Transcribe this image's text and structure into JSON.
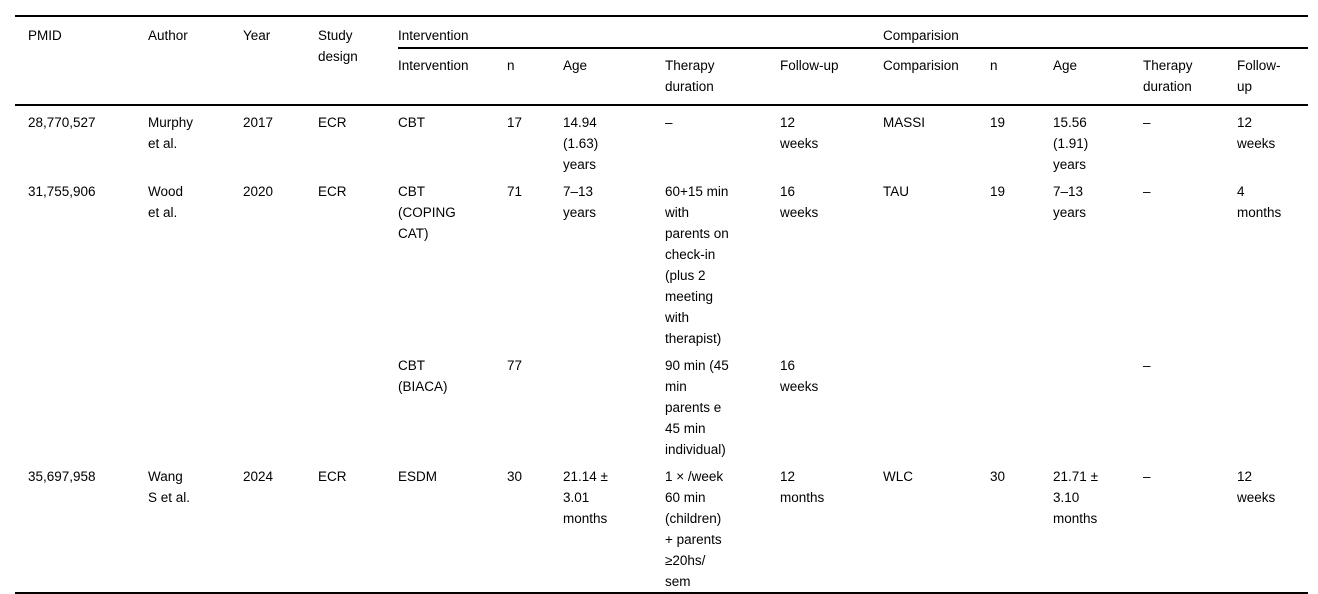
{
  "colors": {
    "text": "#000000",
    "rule": "#000000",
    "bg": "#ffffff"
  },
  "table": {
    "group_headers": {
      "intervention": "Intervention",
      "comparison": "Comparision"
    },
    "column_headers": {
      "pmid": "PMID",
      "author": "Author",
      "year": "Year",
      "study_design": "Study\ndesign",
      "i_intervention": "Intervention",
      "i_n": "n",
      "i_age": "Age",
      "i_therapy_duration": "Therapy\nduration",
      "i_follow_up": "Follow-up",
      "c_comparison": "Comparision",
      "c_n": "n",
      "c_age": "Age",
      "c_therapy_duration": "Therapy\nduration",
      "c_follow_up": "Follow-\nup"
    },
    "rows": [
      [
        "28,770,527",
        "Murphy\net al.",
        "2017",
        "ECR",
        "CBT",
        "17",
        "14.94\n(1.63)\nyears",
        "–",
        "12\nweeks",
        "MASSI",
        "19",
        "15.56\n(1.91)\nyears",
        "–",
        "12\nweeks"
      ],
      [
        "31,755,906",
        "Wood\net al.",
        "2020",
        "ECR",
        "CBT\n(COPING\nCAT)",
        "71",
        "7–13\nyears",
        "60+15 min\nwith\nparents on\ncheck-in\n(plus 2\nmeeting\nwith\ntherapist)",
        "16\nweeks",
        "TAU",
        "19",
        "7–13\nyears",
        "–",
        "4\nmonths"
      ],
      [
        "",
        "",
        "",
        "",
        "CBT\n(BIACA)",
        "77",
        "",
        "90 min (45\nmin\nparents e\n45 min\nindividual)",
        "16\nweeks",
        "",
        "",
        "",
        "–",
        ""
      ],
      [
        "35,697,958",
        "Wang\nS et al.",
        "2024",
        "ECR",
        "ESDM",
        "30",
        "21.14 ±\n3.01\nmonths",
        "1 × /week\n60 min\n(children)\n+ parents\n≥20hs/\nsem",
        "12\nmonths",
        "WLC",
        "30",
        "21.71 ±\n3.10\nmonths",
        "–",
        "12\nweeks"
      ]
    ]
  }
}
